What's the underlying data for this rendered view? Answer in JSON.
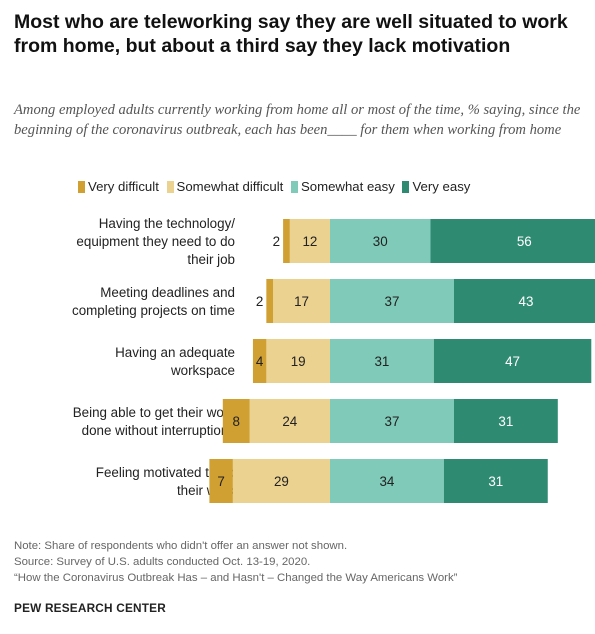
{
  "title": "Most who are teleworking say they are well situated to work from home, but about a third say they lack motivation",
  "subtitle": "Among employed adults currently working from home all or most of the time, % saying, since the beginning of the coronavirus outbreak, each has been____ for them when working from home",
  "notes": {
    "note": "Note: Share of respondents who didn't offer an answer not shown.",
    "source": "Source: Survey of U.S. adults conducted Oct. 13-19, 2020.",
    "report": "“How the Coronavirus Outbreak Has – and Hasn't – Changed the Way Americans Work”"
  },
  "org": "PEW RESEARCH CENTER",
  "colors": {
    "very_difficult": "#d1a033",
    "somewhat_difficult": "#ecd290",
    "somewhat_easy": "#7fcab8",
    "very_easy": "#2f8a72"
  },
  "chart_data": {
    "type": "bar",
    "orientation": "horizontal",
    "stacked": "diverging",
    "categories": [
      "Having the technology/ equipment they need to do their job",
      "Meeting deadlines and completing projects on time",
      "Having an adequate workspace",
      "Being able to get their work done without interruptions",
      "Feeling motivated to do their work"
    ],
    "category_lines": [
      [
        "Having the technology/",
        "equipment they need to do",
        "their job"
      ],
      [
        "Meeting deadlines and",
        "completing projects on time"
      ],
      [
        "Having an adequate",
        "workspace"
      ],
      [
        "Being able to get their work",
        "done without interruptions"
      ],
      [
        "Feeling motivated to do",
        "their work"
      ]
    ],
    "series": [
      {
        "name": "Very difficult",
        "side": "negative",
        "color": "#d1a033",
        "values": [
          2,
          2,
          4,
          8,
          7
        ]
      },
      {
        "name": "Somewhat difficult",
        "side": "negative",
        "color": "#ecd290",
        "values": [
          12,
          17,
          19,
          24,
          29
        ]
      },
      {
        "name": "Somewhat easy",
        "side": "positive",
        "color": "#7fcab8",
        "values": [
          30,
          37,
          31,
          37,
          34
        ]
      },
      {
        "name": "Very easy",
        "side": "positive",
        "color": "#2f8a72",
        "values": [
          56,
          43,
          47,
          31,
          31
        ]
      }
    ],
    "legend_position": "top",
    "grid": false
  }
}
